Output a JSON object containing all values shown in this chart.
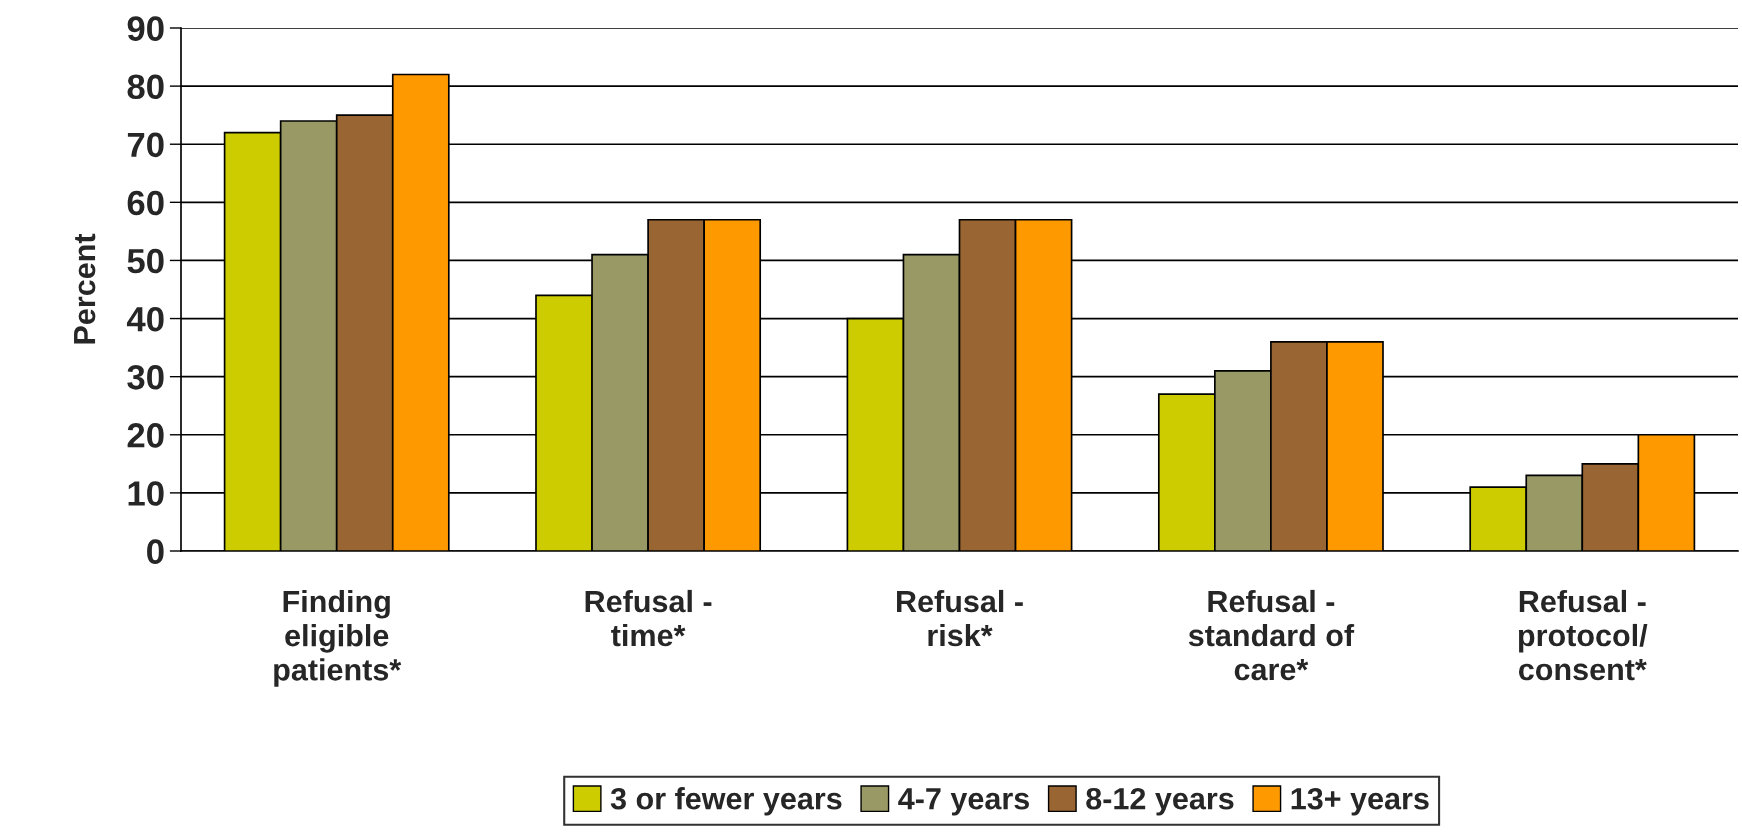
{
  "chart_data": {
    "type": "bar",
    "categories": [
      "Finding\neligible\npatients*",
      "Refusal -\ntime*",
      "Refusal -\nrisk*",
      "Refusal -\nstandard of\ncare*",
      "Refusal -\nprotocol/\nconsent*"
    ],
    "series": [
      {
        "name": "3 or fewer years",
        "color": "#cccc00",
        "values": [
          72,
          44,
          40,
          27,
          11
        ]
      },
      {
        "name": "4-7 years",
        "color": "#999966",
        "values": [
          74,
          51,
          51,
          31,
          13
        ]
      },
      {
        "name": "8-12 years",
        "color": "#996633",
        "values": [
          75,
          57,
          57,
          36,
          15
        ]
      },
      {
        "name": "13+ years",
        "color": "#ff9900",
        "values": [
          82,
          57,
          57,
          36,
          20
        ]
      }
    ],
    "ylabel": "Percent",
    "ylim": [
      0,
      90
    ],
    "yticks": [
      0,
      10,
      20,
      30,
      40,
      50,
      60,
      70,
      80,
      90
    ],
    "grid": "y",
    "legend": "bottom"
  }
}
